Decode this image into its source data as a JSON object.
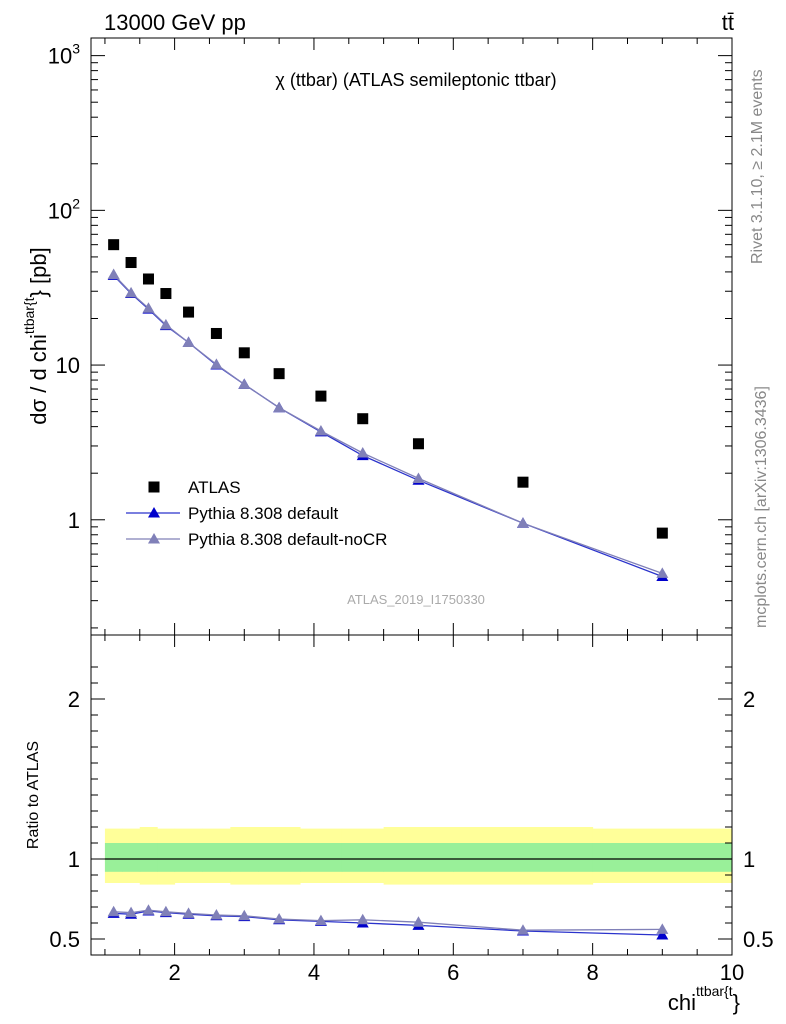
{
  "header": {
    "left": "13000 GeV pp",
    "right": "tt̄"
  },
  "side_labels": {
    "rivet": "Rivet 3.1.10, ≥ 2.1M events",
    "mcplots": "mcplots.cern.ch [arXiv:1306.3436]"
  },
  "chart_data": [
    {
      "type": "scatter",
      "title": "χ (ttbar) (ATLAS semileptonic ttbar)",
      "watermark": "ATLAS_2019_I1750330",
      "ylabel": "dσ / d chi^{ttbar{t}} [pb]",
      "ylabel_parts": {
        "main": "dσ / d chi",
        "sup": "ttbar{t",
        "tail": "} [pb]"
      },
      "yscale": "log",
      "xlim": [
        0.8,
        10.0
      ],
      "ylim": [
        0.18,
        1300
      ],
      "y_tick_labels": [
        {
          "value": 1,
          "label": "1"
        },
        {
          "value": 10,
          "label": "10"
        },
        {
          "value": 100,
          "label": "10",
          "sup": "2"
        },
        {
          "value": 1000,
          "label": "10",
          "sup": "3"
        }
      ],
      "legend_position": "bottom-left",
      "series": [
        {
          "name": "ATLAS",
          "marker": "square",
          "color": "#000000",
          "x": [
            1.125,
            1.375,
            1.625,
            1.875,
            2.2,
            2.6,
            3.0,
            3.5,
            4.1,
            4.7,
            5.5,
            7.0,
            9.0
          ],
          "y": [
            60,
            46,
            36,
            29,
            22,
            16,
            12,
            8.8,
            6.3,
            4.5,
            3.1,
            1.75,
            0.82
          ]
        },
        {
          "name": "Pythia 8.308 default",
          "marker": "triangle",
          "color": "#0000cc",
          "line_color": "#2b33cc",
          "x": [
            1.125,
            1.375,
            1.625,
            1.875,
            2.2,
            2.6,
            3.0,
            3.5,
            4.1,
            4.7,
            5.5,
            7.0,
            9.0
          ],
          "y": [
            38,
            29,
            23,
            18,
            14,
            10,
            7.5,
            5.3,
            3.7,
            2.6,
            1.8,
            0.95,
            0.43
          ]
        },
        {
          "name": "Pythia 8.308 default-noCR",
          "marker": "triangle",
          "color": "#8080b8",
          "line_color": "#8080b8",
          "x": [
            1.125,
            1.375,
            1.625,
            1.875,
            2.2,
            2.6,
            3.0,
            3.5,
            4.1,
            4.7,
            5.5,
            7.0,
            9.0
          ],
          "y": [
            38.5,
            29.3,
            23.3,
            18.2,
            14,
            10.1,
            7.5,
            5.3,
            3.75,
            2.7,
            1.85,
            0.95,
            0.45
          ]
        }
      ]
    },
    {
      "type": "scatter",
      "ylabel": "Ratio to ATLAS",
      "xlabel": "chi^{ttbar{t}}",
      "xlabel_parts": {
        "main": "chi",
        "sup": "ttbar{t",
        "tail": "}"
      },
      "xlim": [
        0.8,
        10.0
      ],
      "ylim": [
        0.4,
        2.4
      ],
      "x_tick_labels": [
        "2",
        "4",
        "6",
        "8",
        "10"
      ],
      "y_tick_labels": [
        "0.5",
        "1",
        "2"
      ],
      "reference_line": 1.0,
      "bands": [
        {
          "name": "ATLAS total uncertainty",
          "color": "#ffff99",
          "bins": [
            [
              1.0,
              1.25
            ],
            [
              1.25,
              1.5
            ],
            [
              1.5,
              1.75
            ],
            [
              1.75,
              2.0
            ],
            [
              2.0,
              2.4
            ],
            [
              2.4,
              2.8
            ],
            [
              2.8,
              3.2
            ],
            [
              3.2,
              3.8
            ],
            [
              3.8,
              4.4
            ],
            [
              4.4,
              5.0
            ],
            [
              5.0,
              6.0
            ],
            [
              6.0,
              8.0
            ],
            [
              8.0,
              10.0
            ]
          ],
          "low": [
            0.85,
            0.85,
            0.84,
            0.84,
            0.85,
            0.85,
            0.84,
            0.84,
            0.85,
            0.85,
            0.84,
            0.84,
            0.85
          ],
          "high": [
            1.19,
            1.19,
            1.2,
            1.19,
            1.19,
            1.19,
            1.2,
            1.2,
            1.19,
            1.19,
            1.2,
            1.2,
            1.19
          ]
        },
        {
          "name": "ATLAS stat uncertainty",
          "color": "#99f099",
          "bins": [
            [
              1.0,
              1.25
            ],
            [
              1.25,
              1.5
            ],
            [
              1.5,
              1.75
            ],
            [
              1.75,
              2.0
            ],
            [
              2.0,
              2.4
            ],
            [
              2.4,
              2.8
            ],
            [
              2.8,
              3.2
            ],
            [
              3.2,
              3.8
            ],
            [
              3.8,
              4.4
            ],
            [
              4.4,
              5.0
            ],
            [
              5.0,
              6.0
            ],
            [
              6.0,
              8.0
            ],
            [
              8.0,
              10.0
            ]
          ],
          "low": [
            0.92,
            0.92,
            0.92,
            0.92,
            0.92,
            0.92,
            0.92,
            0.92,
            0.92,
            0.92,
            0.92,
            0.92,
            0.92
          ],
          "high": [
            1.1,
            1.1,
            1.1,
            1.1,
            1.1,
            1.1,
            1.1,
            1.1,
            1.1,
            1.1,
            1.1,
            1.1,
            1.1
          ]
        }
      ],
      "series": [
        {
          "name": "Pythia 8.308 default",
          "marker": "triangle",
          "color": "#0000cc",
          "line_color": "#2b33cc",
          "x": [
            1.125,
            1.375,
            1.625,
            1.875,
            2.2,
            2.6,
            3.0,
            3.5,
            4.1,
            4.7,
            5.5,
            7.0,
            9.0
          ],
          "y": [
            0.66,
            0.655,
            0.675,
            0.665,
            0.655,
            0.645,
            0.64,
            0.62,
            0.61,
            0.6,
            0.585,
            0.55,
            0.525
          ]
        },
        {
          "name": "Pythia 8.308 default-noCR",
          "marker": "triangle",
          "color": "#8080b8",
          "line_color": "#8080b8",
          "x": [
            1.125,
            1.375,
            1.625,
            1.875,
            2.2,
            2.6,
            3.0,
            3.5,
            4.1,
            4.7,
            5.5,
            7.0,
            9.0
          ],
          "y": [
            0.67,
            0.665,
            0.68,
            0.67,
            0.66,
            0.65,
            0.645,
            0.625,
            0.615,
            0.62,
            0.605,
            0.555,
            0.56
          ]
        }
      ]
    }
  ]
}
